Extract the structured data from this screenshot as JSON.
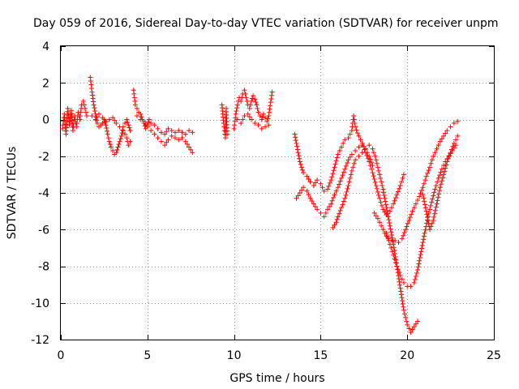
{
  "chart_data": {
    "type": "scatter",
    "title": "Day 059 of 2016, Sidereal Day-to-day VTEC variation (SDTVAR) for receiver unpm",
    "xlabel": "GPS time / hours",
    "ylabel": "SDTVAR / TECUs",
    "xlim": [
      0,
      25
    ],
    "ylim": [
      -12,
      4
    ],
    "xticks": [
      0,
      5,
      10,
      15,
      20,
      25
    ],
    "yticks": [
      4,
      2,
      0,
      -2,
      -4,
      -6,
      -8,
      -10,
      -12
    ],
    "xtick_labels": [
      "0",
      "5",
      "10",
      "15",
      "20",
      "25"
    ],
    "ytick_labels": [
      "4",
      "2",
      "0",
      "-2",
      "-4",
      "-6",
      "-8",
      "-10",
      "-12"
    ],
    "grid": true,
    "legend": "none",
    "marker": "+",
    "color": "#ff0000",
    "series": [
      {
        "name": "segment-1",
        "points": [
          [
            0.1,
            -0.5
          ],
          [
            0.2,
            0.3
          ],
          [
            0.3,
            -0.8
          ],
          [
            0.4,
            0.6
          ],
          [
            0.5,
            -0.3
          ],
          [
            0.6,
            0.5
          ],
          [
            0.7,
            -0.6
          ],
          [
            0.8,
            0.2
          ],
          [
            0.9,
            -0.4
          ],
          [
            1.0,
            0.4
          ],
          [
            1.1,
            0.0
          ],
          [
            1.2,
            0.8
          ],
          [
            1.3,
            1.0
          ],
          [
            1.4,
            0.6
          ],
          [
            1.5,
            0.2
          ]
        ]
      },
      {
        "name": "segment-2",
        "points": [
          [
            1.7,
            2.3
          ],
          [
            1.8,
            1.5
          ],
          [
            1.9,
            0.8
          ],
          [
            2.0,
            0.3
          ],
          [
            2.1,
            -0.2
          ],
          [
            2.2,
            -0.4
          ],
          [
            2.3,
            -0.3
          ],
          [
            2.4,
            -0.2
          ],
          [
            2.5,
            0.0
          ],
          [
            2.6,
            -0.3
          ],
          [
            2.7,
            -0.8
          ],
          [
            2.8,
            -1.2
          ],
          [
            2.9,
            -1.5
          ],
          [
            3.0,
            -1.7
          ],
          [
            3.1,
            -1.9
          ],
          [
            3.2,
            -1.8
          ],
          [
            3.3,
            -1.5
          ],
          [
            3.4,
            -1.2
          ],
          [
            3.5,
            -0.9
          ],
          [
            3.6,
            -0.4
          ],
          [
            3.7,
            -0.2
          ],
          [
            3.8,
            0.0
          ],
          [
            3.9,
            -0.3
          ],
          [
            4.0,
            -0.6
          ]
        ]
      },
      {
        "name": "segment-3",
        "points": [
          [
            1.8,
            0.2
          ],
          [
            2.0,
            0.0
          ],
          [
            2.2,
            0.3
          ],
          [
            2.4,
            0.1
          ],
          [
            2.6,
            -0.1
          ],
          [
            2.8,
            0.0
          ],
          [
            3.0,
            0.1
          ],
          [
            3.2,
            -0.2
          ],
          [
            3.4,
            -0.4
          ],
          [
            3.6,
            -0.6
          ],
          [
            3.8,
            -1.0
          ],
          [
            3.9,
            -1.4
          ],
          [
            4.0,
            -1.2
          ]
        ]
      },
      {
        "name": "segment-4",
        "points": [
          [
            4.2,
            1.6
          ],
          [
            4.3,
            0.8
          ],
          [
            4.4,
            0.6
          ],
          [
            4.5,
            0.4
          ],
          [
            4.6,
            0.3
          ],
          [
            4.7,
            0.0
          ],
          [
            4.8,
            -0.2
          ],
          [
            4.9,
            -0.5
          ],
          [
            5.0,
            -0.3
          ],
          [
            5.1,
            0.0
          ],
          [
            5.2,
            -0.2
          ],
          [
            5.4,
            -0.3
          ],
          [
            5.6,
            -0.5
          ],
          [
            5.8,
            -0.7
          ],
          [
            6.0,
            -0.8
          ],
          [
            6.2,
            -0.5
          ],
          [
            6.4,
            -0.6
          ],
          [
            6.6,
            -0.7
          ],
          [
            6.8,
            -0.6
          ],
          [
            7.0,
            -0.7
          ],
          [
            7.2,
            -0.8
          ],
          [
            7.4,
            -0.6
          ],
          [
            7.6,
            -0.7
          ]
        ]
      },
      {
        "name": "segment-5",
        "points": [
          [
            4.4,
            0.2
          ],
          [
            4.6,
            0.0
          ],
          [
            4.8,
            -0.1
          ],
          [
            5.0,
            -0.4
          ],
          [
            5.2,
            -0.6
          ],
          [
            5.4,
            -0.8
          ],
          [
            5.6,
            -1.0
          ],
          [
            5.8,
            -1.2
          ],
          [
            6.0,
            -1.4
          ],
          [
            6.2,
            -1.1
          ],
          [
            6.4,
            -0.9
          ],
          [
            6.6,
            -1.0
          ],
          [
            6.8,
            -1.1
          ],
          [
            7.0,
            -1.0
          ],
          [
            7.2,
            -1.2
          ],
          [
            7.4,
            -1.5
          ],
          [
            7.6,
            -1.8
          ]
        ]
      },
      {
        "name": "segment-6",
        "points": [
          [
            9.3,
            0.8
          ],
          [
            9.35,
            0.3
          ],
          [
            9.4,
            -0.2
          ],
          [
            9.45,
            -0.6
          ],
          [
            9.5,
            -1.0
          ],
          [
            9.55,
            0.6
          ],
          [
            9.6,
            -0.8
          ]
        ]
      },
      {
        "name": "segment-7",
        "points": [
          [
            10.0,
            -0.5
          ],
          [
            10.1,
            0.3
          ],
          [
            10.2,
            0.8
          ],
          [
            10.3,
            1.2
          ],
          [
            10.4,
            1.0
          ],
          [
            10.5,
            1.4
          ],
          [
            10.6,
            1.6
          ],
          [
            10.7,
            1.2
          ],
          [
            10.8,
            0.8
          ],
          [
            10.9,
            0.6
          ],
          [
            11.0,
            1.0
          ],
          [
            11.1,
            1.3
          ],
          [
            11.2,
            1.1
          ],
          [
            11.3,
            0.8
          ],
          [
            11.4,
            0.4
          ],
          [
            11.5,
            0.2
          ],
          [
            11.6,
            0.0
          ],
          [
            11.7,
            0.3
          ],
          [
            11.8,
            0.1
          ],
          [
            11.9,
            -0.1
          ],
          [
            12.0,
            0.2
          ],
          [
            12.2,
            1.5
          ]
        ]
      },
      {
        "name": "segment-8",
        "points": [
          [
            10.2,
            0.0
          ],
          [
            10.4,
            -0.2
          ],
          [
            10.6,
            0.2
          ],
          [
            10.8,
            0.3
          ],
          [
            11.0,
            0.0
          ],
          [
            11.2,
            -0.2
          ],
          [
            11.4,
            -0.3
          ],
          [
            11.6,
            -0.5
          ],
          [
            11.8,
            -0.4
          ],
          [
            12.0,
            -0.3
          ]
        ]
      },
      {
        "name": "segment-9",
        "points": [
          [
            13.5,
            -0.8
          ],
          [
            13.6,
            -1.3
          ],
          [
            13.7,
            -1.8
          ],
          [
            13.8,
            -2.3
          ],
          [
            13.9,
            -2.6
          ],
          [
            14.0,
            -2.9
          ],
          [
            14.2,
            -3.1
          ],
          [
            14.4,
            -3.4
          ],
          [
            14.6,
            -3.6
          ],
          [
            14.8,
            -3.3
          ],
          [
            15.0,
            -3.5
          ],
          [
            15.2,
            -3.9
          ],
          [
            15.4,
            -3.8
          ],
          [
            15.6,
            -3.3
          ],
          [
            15.8,
            -2.6
          ],
          [
            16.0,
            -1.9
          ],
          [
            16.2,
            -1.5
          ],
          [
            16.4,
            -1.1
          ],
          [
            16.6,
            -1.0
          ],
          [
            16.8,
            -0.6
          ],
          [
            16.9,
            0.2
          ],
          [
            17.0,
            -0.4
          ],
          [
            17.2,
            -0.9
          ],
          [
            17.4,
            -1.3
          ],
          [
            17.6,
            -1.8
          ],
          [
            17.8,
            -2.3
          ],
          [
            18.0,
            -2.9
          ],
          [
            18.2,
            -3.6
          ],
          [
            18.4,
            -4.3
          ],
          [
            18.6,
            -4.9
          ],
          [
            18.8,
            -5.2
          ],
          [
            19.0,
            -5.0
          ],
          [
            19.2,
            -4.6
          ],
          [
            19.4,
            -4.1
          ],
          [
            19.6,
            -3.6
          ],
          [
            19.8,
            -3.0
          ]
        ]
      },
      {
        "name": "segment-10",
        "points": [
          [
            13.6,
            -4.3
          ],
          [
            13.8,
            -4.0
          ],
          [
            14.0,
            -3.7
          ],
          [
            14.2,
            -3.9
          ],
          [
            14.4,
            -4.3
          ],
          [
            14.6,
            -4.6
          ],
          [
            14.8,
            -4.9
          ],
          [
            15.0,
            -5.1
          ],
          [
            15.2,
            -5.3
          ],
          [
            15.4,
            -4.9
          ],
          [
            15.6,
            -4.6
          ],
          [
            15.8,
            -4.1
          ],
          [
            16.0,
            -3.7
          ],
          [
            16.2,
            -3.2
          ],
          [
            16.4,
            -2.7
          ],
          [
            16.6,
            -2.2
          ],
          [
            16.8,
            -1.9
          ],
          [
            17.0,
            -1.7
          ],
          [
            17.2,
            -1.5
          ],
          [
            17.4,
            -1.4
          ],
          [
            17.6,
            -1.6
          ],
          [
            17.8,
            -2.0
          ],
          [
            18.0,
            -2.5
          ]
        ]
      },
      {
        "name": "segment-11",
        "points": [
          [
            15.7,
            -5.9
          ],
          [
            15.9,
            -5.6
          ],
          [
            16.0,
            -5.3
          ],
          [
            16.2,
            -4.8
          ],
          [
            16.4,
            -4.3
          ],
          [
            16.6,
            -3.6
          ],
          [
            16.8,
            -2.8
          ],
          [
            17.0,
            -2.2
          ],
          [
            17.2,
            -2.0
          ],
          [
            17.4,
            -1.8
          ],
          [
            17.6,
            -1.6
          ],
          [
            17.8,
            -1.4
          ],
          [
            18.0,
            -1.6
          ],
          [
            18.2,
            -2.2
          ],
          [
            18.4,
            -3.0
          ],
          [
            18.6,
            -3.8
          ],
          [
            18.8,
            -4.8
          ],
          [
            19.0,
            -5.8
          ],
          [
            19.2,
            -6.8
          ],
          [
            19.4,
            -8.0
          ],
          [
            19.6,
            -9.2
          ],
          [
            19.8,
            -10.4
          ],
          [
            20.0,
            -11.2
          ],
          [
            20.2,
            -11.6
          ],
          [
            20.4,
            -11.3
          ],
          [
            20.6,
            -11.0
          ]
        ]
      },
      {
        "name": "segment-12",
        "points": [
          [
            18.1,
            -5.1
          ],
          [
            18.3,
            -5.4
          ],
          [
            18.5,
            -5.8
          ],
          [
            18.7,
            -6.2
          ],
          [
            18.9,
            -6.5
          ],
          [
            19.1,
            -6.6
          ],
          [
            19.3,
            -6.6
          ],
          [
            19.5,
            -6.7
          ],
          [
            19.7,
            -6.5
          ],
          [
            19.9,
            -6.0
          ],
          [
            20.1,
            -5.5
          ],
          [
            20.3,
            -5.0
          ],
          [
            20.5,
            -4.6
          ],
          [
            20.7,
            -4.2
          ],
          [
            20.9,
            -3.7
          ],
          [
            21.1,
            -3.1
          ],
          [
            21.3,
            -2.6
          ],
          [
            21.5,
            -2.0
          ],
          [
            21.7,
            -1.6
          ],
          [
            21.9,
            -1.2
          ],
          [
            22.1,
            -0.9
          ],
          [
            22.3,
            -0.6
          ],
          [
            22.5,
            -0.4
          ],
          [
            22.7,
            -0.2
          ],
          [
            22.9,
            -0.1
          ]
        ]
      },
      {
        "name": "segment-13",
        "points": [
          [
            18.8,
            -6.2
          ],
          [
            19.0,
            -6.8
          ],
          [
            19.2,
            -7.4
          ],
          [
            19.4,
            -8.0
          ],
          [
            19.6,
            -8.5
          ],
          [
            19.8,
            -8.9
          ],
          [
            20.0,
            -9.1
          ],
          [
            20.2,
            -9.1
          ],
          [
            20.4,
            -8.9
          ],
          [
            20.6,
            -8.2
          ],
          [
            20.8,
            -7.2
          ],
          [
            21.0,
            -6.2
          ],
          [
            21.2,
            -5.3
          ],
          [
            21.4,
            -4.5
          ],
          [
            21.6,
            -3.8
          ],
          [
            21.8,
            -3.2
          ],
          [
            22.0,
            -2.7
          ],
          [
            22.2,
            -2.3
          ],
          [
            22.4,
            -2.0
          ],
          [
            22.6,
            -1.7
          ],
          [
            22.8,
            -1.4
          ]
        ]
      },
      {
        "name": "segment-14",
        "points": [
          [
            20.9,
            -4.1
          ],
          [
            21.1,
            -5.0
          ],
          [
            21.3,
            -6.0
          ],
          [
            21.5,
            -5.5
          ],
          [
            21.7,
            -4.6
          ],
          [
            21.9,
            -3.7
          ],
          [
            22.1,
            -3.0
          ],
          [
            22.3,
            -2.3
          ],
          [
            22.5,
            -1.8
          ],
          [
            22.7,
            -1.3
          ],
          [
            22.9,
            -0.9
          ]
        ]
      }
    ]
  }
}
